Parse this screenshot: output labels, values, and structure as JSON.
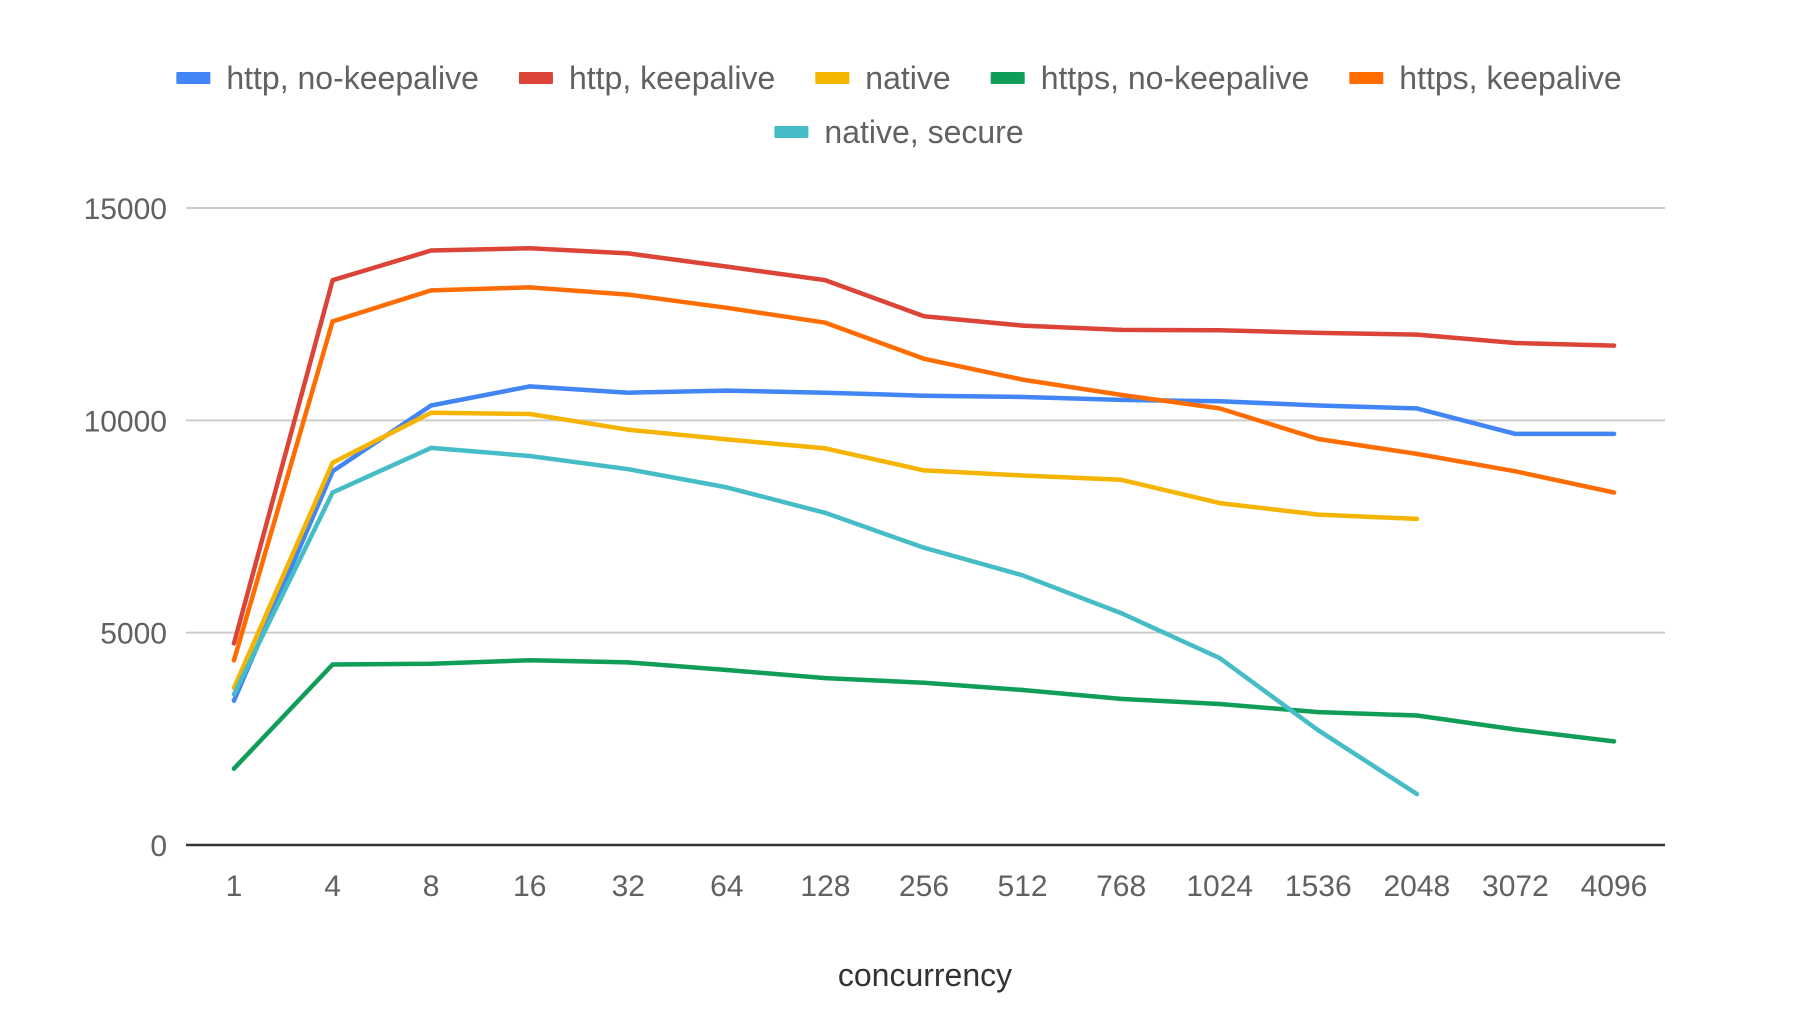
{
  "chart_data": {
    "type": "line",
    "title": "",
    "xlabel": "concurrency",
    "ylabel": "",
    "ylim": [
      0,
      15000
    ],
    "yticks": [
      0,
      5000,
      10000,
      15000
    ],
    "grid": true,
    "legend_position": "top",
    "categories": [
      "1",
      "4",
      "8",
      "16",
      "32",
      "64",
      "128",
      "256",
      "512",
      "768",
      "1024",
      "1536",
      "2048",
      "3072",
      "4096"
    ],
    "series": [
      {
        "name": "http, no-keepalive",
        "color": "#4285f4",
        "values": [
          3400,
          8800,
          10350,
          10800,
          10650,
          10700,
          10650,
          10580,
          10550,
          10480,
          10450,
          10350,
          10280,
          9680,
          9680
        ]
      },
      {
        "name": "http, keepalive",
        "color": "#db4437",
        "values": [
          4750,
          13300,
          14000,
          14050,
          13930,
          13620,
          13300,
          12450,
          12230,
          12130,
          12120,
          12060,
          12020,
          11820,
          11760
        ]
      },
      {
        "name": "native",
        "color": "#f4b400",
        "values": [
          3700,
          9000,
          10180,
          10150,
          9780,
          9550,
          9340,
          8820,
          8700,
          8600,
          8050,
          7780,
          7680,
          null,
          null
        ]
      },
      {
        "name": "https, no-keepalive",
        "color": "#0f9d58",
        "values": [
          1800,
          4250,
          4270,
          4350,
          4300,
          4120,
          3930,
          3820,
          3650,
          3440,
          3320,
          3130,
          3050,
          2720,
          2440
        ]
      },
      {
        "name": "https, keepalive",
        "color": "#ff6d00",
        "values": [
          4350,
          12330,
          13060,
          13130,
          12960,
          12650,
          12300,
          11450,
          10960,
          10600,
          10280,
          9560,
          9210,
          8800,
          8300
        ]
      },
      {
        "name": "native, secure",
        "color": "#46bdc6",
        "values": [
          3550,
          8300,
          9350,
          9160,
          8850,
          8420,
          7820,
          7000,
          6350,
          5460,
          4400,
          2700,
          1200,
          null,
          null
        ]
      }
    ]
  }
}
